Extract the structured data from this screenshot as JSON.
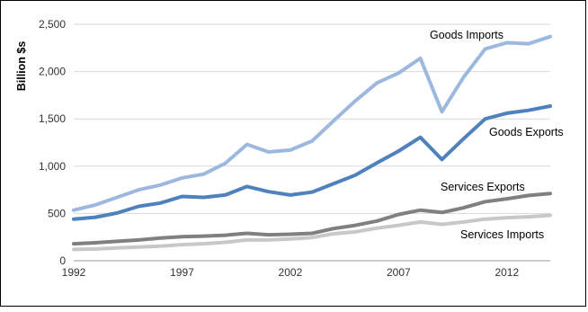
{
  "chart_data": {
    "type": "line",
    "title": "",
    "xlabel": "",
    "ylabel": "Billion $s",
    "ylim": [
      0,
      2500
    ],
    "xlim": [
      1992,
      2014
    ],
    "yticks": [
      0,
      500,
      1000,
      1500,
      2000,
      2500
    ],
    "ytick_labels": [
      "0",
      "500",
      "1,000",
      "1,500",
      "2,000",
      "2,500"
    ],
    "xticks": [
      1992,
      1997,
      2002,
      2007,
      2012
    ],
    "xtick_labels": [
      "1992",
      "1997",
      "2002",
      "2007",
      "2012"
    ],
    "grid": "horizontal",
    "legend": "none",
    "x": [
      1992,
      1993,
      1994,
      1995,
      1996,
      1997,
      1998,
      1999,
      2000,
      2001,
      2002,
      2003,
      2004,
      2005,
      2006,
      2007,
      2008,
      2009,
      2010,
      2011,
      2012,
      2013,
      2014
    ],
    "series": [
      {
        "name": "Goods Imports",
        "color": "#9db8df",
        "values": [
          535,
          590,
          670,
          750,
          800,
          875,
          915,
          1030,
          1230,
          1150,
          1170,
          1265,
          1480,
          1690,
          1880,
          1985,
          2140,
          1575,
          1940,
          2240,
          2305,
          2295,
          2370
        ]
      },
      {
        "name": "Goods Exports",
        "color": "#4f81bd",
        "values": [
          440,
          460,
          505,
          575,
          610,
          680,
          670,
          695,
          785,
          730,
          695,
          725,
          815,
          905,
          1035,
          1160,
          1305,
          1070,
          1290,
          1500,
          1560,
          1590,
          1635
        ]
      },
      {
        "name": "Services Exports",
        "color": "#808080",
        "values": [
          180,
          190,
          205,
          220,
          240,
          255,
          260,
          270,
          290,
          275,
          280,
          290,
          340,
          375,
          420,
          490,
          535,
          510,
          560,
          625,
          655,
          690,
          710
        ]
      },
      {
        "name": "Services Imports",
        "color": "#c8c8c8",
        "values": [
          120,
          125,
          135,
          145,
          155,
          170,
          180,
          195,
          220,
          220,
          230,
          245,
          285,
          305,
          345,
          375,
          410,
          385,
          410,
          440,
          455,
          465,
          480
        ]
      }
    ]
  }
}
